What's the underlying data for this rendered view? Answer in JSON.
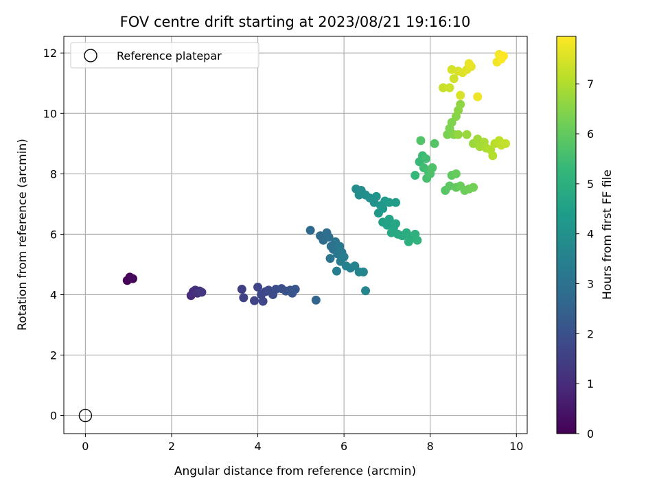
{
  "chart_data": {
    "type": "scatter",
    "title": "FOV centre drift starting at 2023/08/21 19:16:10",
    "xlabel": "Angular distance from reference (arcmin)",
    "ylabel": "Rotation from reference (arcmin)",
    "xlim": [
      -0.5,
      10.25
    ],
    "ylim": [
      -0.6,
      12.55
    ],
    "xticks": [
      "0",
      "2",
      "4",
      "6",
      "8",
      "10"
    ],
    "yticks": [
      "0",
      "2",
      "4",
      "6",
      "8",
      "10",
      "12"
    ],
    "grid": true,
    "legend": {
      "placement": "upper-left",
      "entries": [
        "Reference platepar"
      ]
    },
    "reference_point": {
      "x": 0,
      "y": 0
    },
    "colorbar": {
      "label": "Hours from first FF file",
      "range": [
        0,
        7.95
      ],
      "ticks": [
        "0",
        "1",
        "2",
        "3",
        "4",
        "5",
        "6",
        "7"
      ],
      "colormap": [
        "#440154",
        "#482878",
        "#3e4989",
        "#31688e",
        "#26828e",
        "#1f9e89",
        "#35b779",
        "#6ece58",
        "#b5de2b",
        "#fde725"
      ]
    },
    "series": [
      {
        "points": [
          {
            "x": 0.97,
            "y": 4.47,
            "h": 0.05
          },
          {
            "x": 1.03,
            "y": 4.58,
            "h": 0.08
          },
          {
            "x": 1.1,
            "y": 4.53,
            "h": 0.12
          },
          {
            "x": 1.06,
            "y": 4.55,
            "h": 0.15
          },
          {
            "x": 2.45,
            "y": 3.97,
            "h": 1.0
          },
          {
            "x": 2.5,
            "y": 4.1,
            "h": 1.05
          },
          {
            "x": 2.55,
            "y": 4.15,
            "h": 1.1
          },
          {
            "x": 2.6,
            "y": 4.05,
            "h": 1.15
          },
          {
            "x": 2.65,
            "y": 4.12,
            "h": 1.2
          },
          {
            "x": 2.7,
            "y": 4.08,
            "h": 1.25
          },
          {
            "x": 3.63,
            "y": 4.18,
            "h": 1.5
          },
          {
            "x": 3.67,
            "y": 3.9,
            "h": 1.55
          },
          {
            "x": 3.92,
            "y": 3.8,
            "h": 1.6
          },
          {
            "x": 4.0,
            "y": 4.25,
            "h": 1.65
          },
          {
            "x": 4.08,
            "y": 4.0,
            "h": 1.7
          },
          {
            "x": 4.12,
            "y": 3.78,
            "h": 1.72
          },
          {
            "x": 4.18,
            "y": 4.1,
            "h": 1.75
          },
          {
            "x": 4.25,
            "y": 4.15,
            "h": 1.8
          },
          {
            "x": 4.35,
            "y": 4.0,
            "h": 1.85
          },
          {
            "x": 4.42,
            "y": 4.18,
            "h": 1.9
          },
          {
            "x": 4.55,
            "y": 4.2,
            "h": 1.95
          },
          {
            "x": 4.65,
            "y": 4.12,
            "h": 2.0
          },
          {
            "x": 4.75,
            "y": 4.15,
            "h": 2.05
          },
          {
            "x": 4.8,
            "y": 4.05,
            "h": 2.1
          },
          {
            "x": 4.87,
            "y": 4.18,
            "h": 2.15
          },
          {
            "x": 5.35,
            "y": 3.82,
            "h": 2.6
          },
          {
            "x": 5.22,
            "y": 6.13,
            "h": 2.7
          },
          {
            "x": 5.45,
            "y": 5.95,
            "h": 2.75
          },
          {
            "x": 5.52,
            "y": 5.8,
            "h": 2.8
          },
          {
            "x": 5.6,
            "y": 6.05,
            "h": 2.85
          },
          {
            "x": 5.65,
            "y": 5.9,
            "h": 2.9
          },
          {
            "x": 5.7,
            "y": 5.6,
            "h": 2.95
          },
          {
            "x": 5.75,
            "y": 5.5,
            "h": 3.0
          },
          {
            "x": 5.8,
            "y": 5.75,
            "h": 3.05
          },
          {
            "x": 5.68,
            "y": 5.2,
            "h": 3.1
          },
          {
            "x": 5.85,
            "y": 5.35,
            "h": 3.15
          },
          {
            "x": 5.9,
            "y": 5.6,
            "h": 3.2
          },
          {
            "x": 5.95,
            "y": 5.4,
            "h": 3.25
          },
          {
            "x": 5.92,
            "y": 5.1,
            "h": 3.3
          },
          {
            "x": 6.0,
            "y": 5.25,
            "h": 3.35
          },
          {
            "x": 5.83,
            "y": 4.78,
            "h": 3.4
          },
          {
            "x": 6.05,
            "y": 4.95,
            "h": 3.45
          },
          {
            "x": 6.15,
            "y": 4.88,
            "h": 3.5
          },
          {
            "x": 6.25,
            "y": 4.95,
            "h": 3.55
          },
          {
            "x": 6.35,
            "y": 4.75,
            "h": 3.6
          },
          {
            "x": 6.45,
            "y": 4.75,
            "h": 3.65
          },
          {
            "x": 6.5,
            "y": 4.13,
            "h": 3.7
          },
          {
            "x": 6.28,
            "y": 7.5,
            "h": 3.8
          },
          {
            "x": 6.35,
            "y": 7.3,
            "h": 3.85
          },
          {
            "x": 6.4,
            "y": 7.45,
            "h": 3.9
          },
          {
            "x": 6.5,
            "y": 7.3,
            "h": 3.95
          },
          {
            "x": 6.6,
            "y": 7.2,
            "h": 4.0
          },
          {
            "x": 6.7,
            "y": 7.05,
            "h": 4.05
          },
          {
            "x": 6.75,
            "y": 7.25,
            "h": 4.1
          },
          {
            "x": 6.85,
            "y": 6.95,
            "h": 4.15
          },
          {
            "x": 6.8,
            "y": 6.7,
            "h": 4.2
          },
          {
            "x": 6.9,
            "y": 6.85,
            "h": 4.25
          },
          {
            "x": 6.95,
            "y": 7.1,
            "h": 4.3
          },
          {
            "x": 7.05,
            "y": 7.05,
            "h": 4.35
          },
          {
            "x": 7.2,
            "y": 7.05,
            "h": 4.4
          },
          {
            "x": 6.9,
            "y": 6.4,
            "h": 4.5
          },
          {
            "x": 7.0,
            "y": 6.3,
            "h": 4.55
          },
          {
            "x": 7.05,
            "y": 6.5,
            "h": 4.6
          },
          {
            "x": 7.15,
            "y": 6.2,
            "h": 4.65
          },
          {
            "x": 7.2,
            "y": 6.35,
            "h": 4.7
          },
          {
            "x": 7.1,
            "y": 6.05,
            "h": 4.75
          },
          {
            "x": 7.25,
            "y": 6.0,
            "h": 4.8
          },
          {
            "x": 7.35,
            "y": 5.95,
            "h": 4.85
          },
          {
            "x": 7.45,
            "y": 6.05,
            "h": 4.9
          },
          {
            "x": 7.55,
            "y": 5.9,
            "h": 4.95
          },
          {
            "x": 7.5,
            "y": 5.75,
            "h": 5.0
          },
          {
            "x": 7.65,
            "y": 6.0,
            "h": 5.05
          },
          {
            "x": 7.7,
            "y": 5.8,
            "h": 5.1
          },
          {
            "x": 7.65,
            "y": 7.95,
            "h": 5.3
          },
          {
            "x": 7.75,
            "y": 8.4,
            "h": 5.35
          },
          {
            "x": 7.82,
            "y": 8.6,
            "h": 5.4
          },
          {
            "x": 7.85,
            "y": 8.2,
            "h": 5.45
          },
          {
            "x": 7.9,
            "y": 8.5,
            "h": 5.5
          },
          {
            "x": 7.95,
            "y": 8.1,
            "h": 5.55
          },
          {
            "x": 7.92,
            "y": 7.85,
            "h": 5.6
          },
          {
            "x": 8.0,
            "y": 8.0,
            "h": 5.65
          },
          {
            "x": 8.05,
            "y": 8.2,
            "h": 5.7
          },
          {
            "x": 7.78,
            "y": 9.1,
            "h": 5.75
          },
          {
            "x": 8.1,
            "y": 9.0,
            "h": 5.8
          },
          {
            "x": 8.35,
            "y": 7.45,
            "h": 5.85
          },
          {
            "x": 8.45,
            "y": 7.6,
            "h": 5.9
          },
          {
            "x": 8.5,
            "y": 7.95,
            "h": 5.95
          },
          {
            "x": 8.6,
            "y": 7.55,
            "h": 6.0
          },
          {
            "x": 8.6,
            "y": 8.0,
            "h": 6.05
          },
          {
            "x": 8.7,
            "y": 7.6,
            "h": 6.1
          },
          {
            "x": 8.8,
            "y": 7.45,
            "h": 6.15
          },
          {
            "x": 8.9,
            "y": 7.5,
            "h": 6.2
          },
          {
            "x": 9.0,
            "y": 7.55,
            "h": 6.25
          },
          {
            "x": 8.4,
            "y": 9.3,
            "h": 6.3
          },
          {
            "x": 8.45,
            "y": 9.5,
            "h": 6.35
          },
          {
            "x": 8.5,
            "y": 9.7,
            "h": 6.4
          },
          {
            "x": 8.55,
            "y": 9.3,
            "h": 6.45
          },
          {
            "x": 8.6,
            "y": 9.9,
            "h": 6.5
          },
          {
            "x": 8.65,
            "y": 10.1,
            "h": 6.55
          },
          {
            "x": 8.7,
            "y": 10.3,
            "h": 6.6
          },
          {
            "x": 8.65,
            "y": 9.3,
            "h": 6.65
          },
          {
            "x": 8.85,
            "y": 9.3,
            "h": 6.7
          },
          {
            "x": 9.0,
            "y": 9.0,
            "h": 6.75
          },
          {
            "x": 9.1,
            "y": 9.15,
            "h": 6.8
          },
          {
            "x": 9.15,
            "y": 8.9,
            "h": 6.85
          },
          {
            "x": 9.25,
            "y": 9.05,
            "h": 6.9
          },
          {
            "x": 9.3,
            "y": 8.85,
            "h": 6.95
          },
          {
            "x": 9.4,
            "y": 8.8,
            "h": 7.0
          },
          {
            "x": 9.45,
            "y": 8.6,
            "h": 7.05
          },
          {
            "x": 9.5,
            "y": 9.0,
            "h": 7.1
          },
          {
            "x": 9.6,
            "y": 9.1,
            "h": 7.15
          },
          {
            "x": 9.65,
            "y": 8.95,
            "h": 7.2
          },
          {
            "x": 9.75,
            "y": 9.0,
            "h": 7.25
          },
          {
            "x": 8.3,
            "y": 10.85,
            "h": 7.3
          },
          {
            "x": 8.45,
            "y": 10.85,
            "h": 7.35
          },
          {
            "x": 8.55,
            "y": 11.15,
            "h": 7.4
          },
          {
            "x": 8.5,
            "y": 11.45,
            "h": 7.45
          },
          {
            "x": 8.65,
            "y": 11.4,
            "h": 7.5
          },
          {
            "x": 8.75,
            "y": 11.35,
            "h": 7.55
          },
          {
            "x": 8.85,
            "y": 11.45,
            "h": 7.6
          },
          {
            "x": 8.95,
            "y": 11.55,
            "h": 7.65
          },
          {
            "x": 8.9,
            "y": 11.65,
            "h": 7.7
          },
          {
            "x": 8.7,
            "y": 10.6,
            "h": 7.5
          },
          {
            "x": 9.1,
            "y": 10.55,
            "h": 7.75
          },
          {
            "x": 9.55,
            "y": 11.7,
            "h": 7.8
          },
          {
            "x": 9.6,
            "y": 11.95,
            "h": 7.85
          },
          {
            "x": 9.65,
            "y": 11.8,
            "h": 7.9
          },
          {
            "x": 9.7,
            "y": 11.9,
            "h": 7.95
          }
        ]
      }
    ]
  }
}
